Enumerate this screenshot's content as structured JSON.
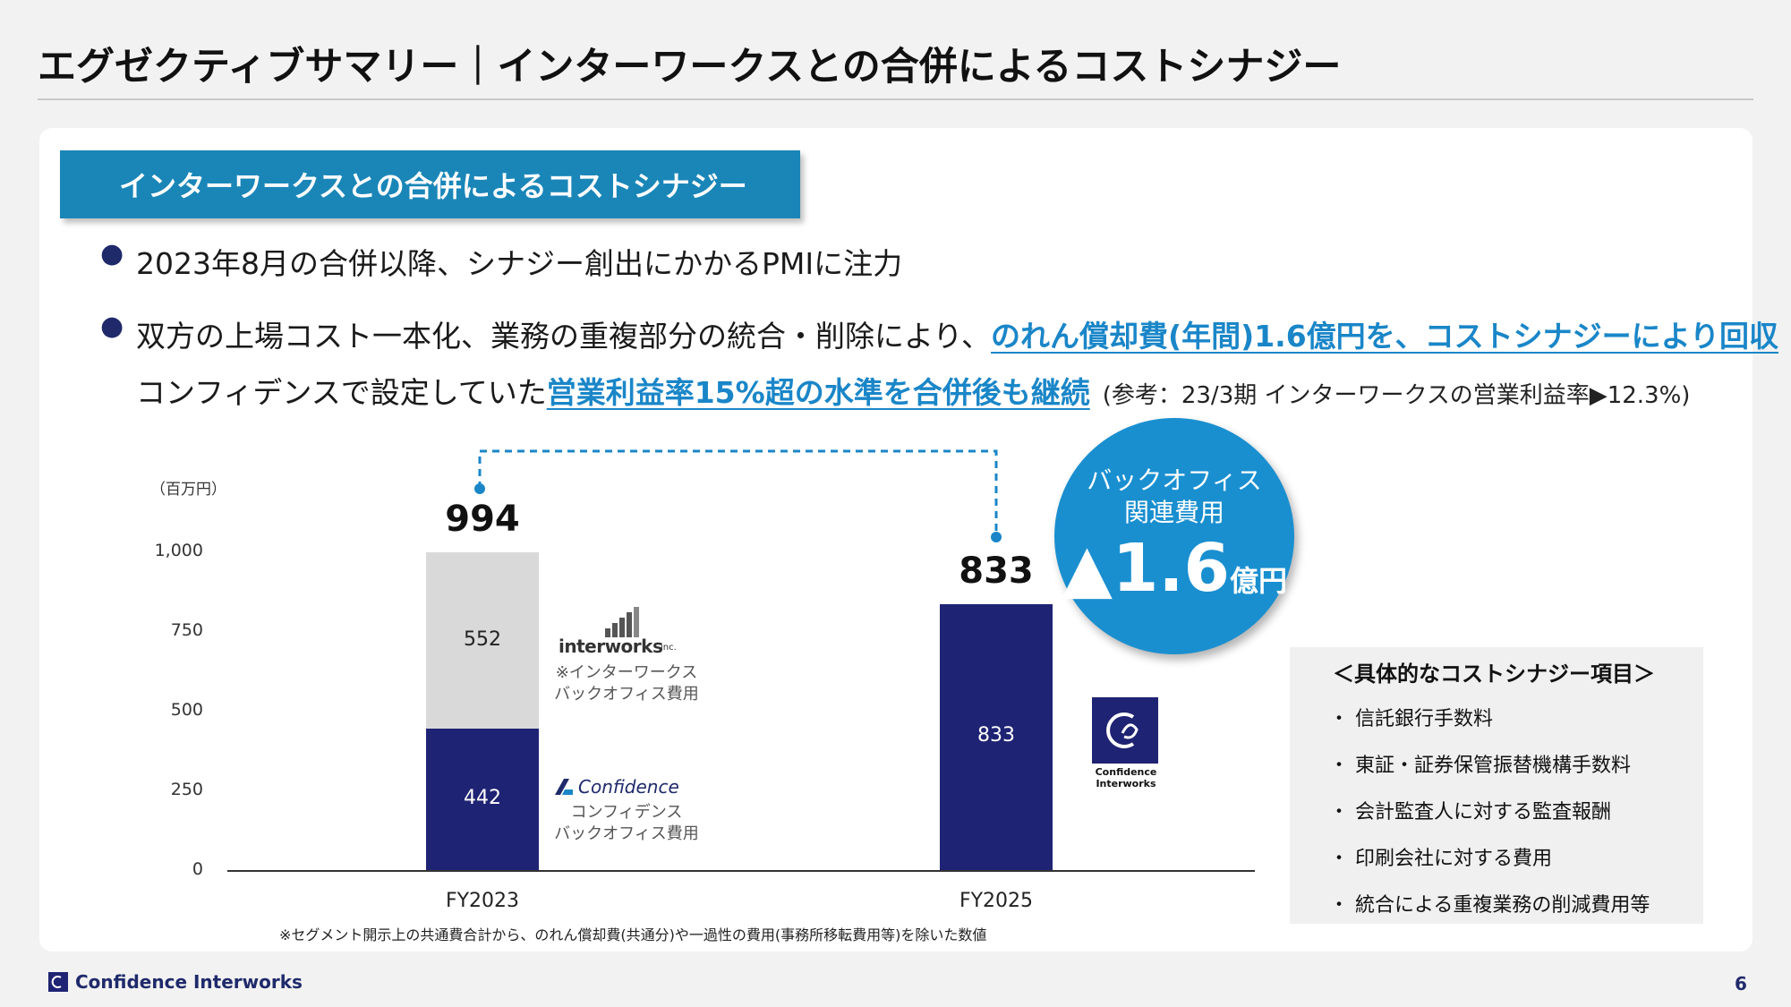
{
  "header": {
    "title": "エグゼクティブサマリー｜インターワークスとの合併によるコストシナジー"
  },
  "section": {
    "banner": "インターワークスとの合併によるコストシナジー"
  },
  "bullets": {
    "b1": "2023年8月の合併以降、シナジー創出にかかるPMIに注力",
    "b2_pre": "双方の上場コスト一本化、業務の重複部分の統合・削除により、",
    "b2_hl": "のれん償却費(年間)1.6億円を、コストシナジーにより回収",
    "b3_pre": "コンフィデンスで設定していた",
    "b3_hl": "営業利益率15%超の水準を合併後も継続",
    "b3_ref": "(参考：23/3期 インターワークスの営業利益率▶12.3%)"
  },
  "chart_data": {
    "type": "bar",
    "unit_label": "（百万円）",
    "ylim": [
      0,
      1000
    ],
    "y_ticks": [
      "0",
      "250",
      "500",
      "750",
      "1,000"
    ],
    "categories": [
      "FY2023",
      "FY2025"
    ],
    "series": [
      {
        "name": "コンフィデンス バックオフィス費用",
        "values": [
          442,
          833
        ],
        "color": "#1f2373"
      },
      {
        "name": "※インターワークス バックオフィス費用",
        "values": [
          552,
          0
        ],
        "color": "#d9d9d9"
      }
    ],
    "totals": [
      "994",
      "833"
    ],
    "segment_labels": {
      "fy2023_bottom": "442",
      "fy2023_top": "552",
      "fy2025": "833"
    }
  },
  "legend": {
    "interworks_logo": "interworks",
    "interworks_logo_suffix": "inc.",
    "interworks_line1": "※インターワークス",
    "interworks_line2": "バックオフィス費用",
    "confidence_logo": "Confidence",
    "confidence_line1": "コンフィデンス",
    "confidence_line2": "バックオフィス費用",
    "ci_logo_line1": "Confidence",
    "ci_logo_line2": "Interworks"
  },
  "callout": {
    "line1": "バックオフィス",
    "line2": "関連費用",
    "value": "▲1.6",
    "unit": "億円"
  },
  "items": {
    "header": "＜具体的なコストシナジー項目＞",
    "list": [
      "・ 信託銀行手数料",
      "・ 東証・証券保管振替機構手数料",
      "・ 会計監査人に対する監査報酬",
      "・ 印刷会社に対する費用",
      "・ 統合による重複業務の削減費用等"
    ]
  },
  "footnote": "※セグメント開示上の共通費合計から、のれん償却費(共通分)や一過性の費用(事務所移転費用等)を除いた数値",
  "footer": {
    "company": "Confidence Interworks",
    "page": "6"
  },
  "colors": {
    "navy": "#1f2373",
    "accent": "#1a86c8",
    "grey_bar": "#d9d9d9"
  }
}
